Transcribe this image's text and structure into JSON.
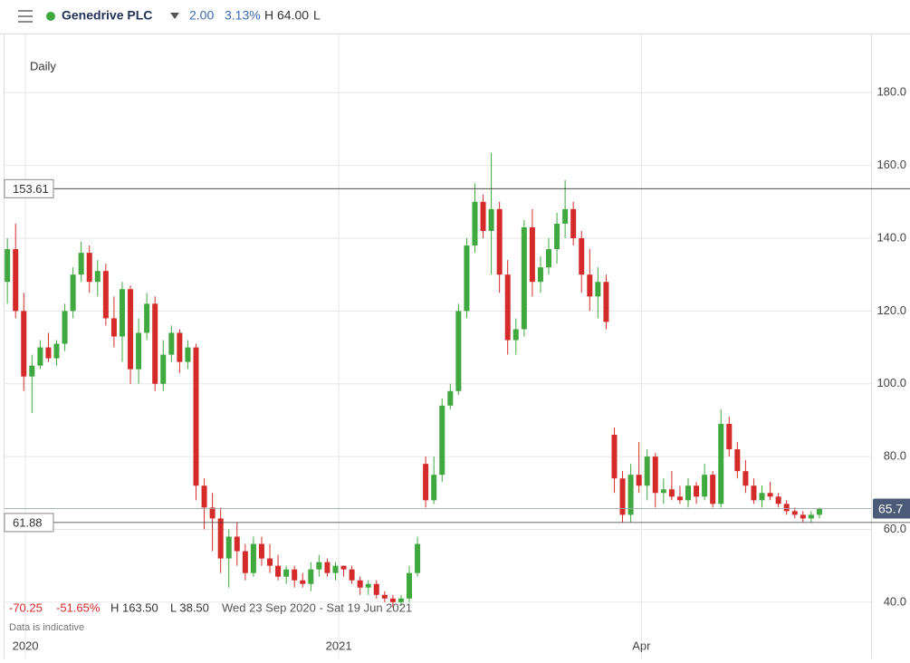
{
  "header": {
    "name": "Genedrive PLC",
    "change": "2.00",
    "change_pct": "3.13%",
    "high": "H 64.00",
    "low": "L"
  },
  "stats": {
    "change": "-70.25",
    "change_pct": "-51.65%",
    "high": "H 163.50",
    "low": "L 38.50",
    "range": "Wed 23 Sep 2020 - Sat 19 Jun 2021",
    "note": "Data is indicative"
  },
  "chart_data": {
    "type": "candlestick",
    "title": "Daily",
    "up_color": "#3fa83f",
    "down_color": "#d42a2a",
    "grid": true,
    "ylim": [
      30,
      196
    ],
    "yticks": [
      {
        "value": 40,
        "label": "40.0"
      },
      {
        "value": 60,
        "label": "60.0"
      },
      {
        "value": 80,
        "label": "80.0"
      },
      {
        "value": 100,
        "label": "100.0"
      },
      {
        "value": 120,
        "label": "120.0"
      },
      {
        "value": 140,
        "label": "140.0"
      },
      {
        "value": 160,
        "label": "160.0"
      },
      {
        "value": 180,
        "label": "180.0"
      }
    ],
    "xlim": [
      -0.9,
      105.3
    ],
    "xticks": [
      {
        "value": 2.2,
        "label": "2020"
      },
      {
        "value": 40.4,
        "label": "2021"
      },
      {
        "value": 77.3,
        "label": "Apr"
      }
    ],
    "hlines": [
      153.61,
      61.88
    ],
    "last_price": 65.7,
    "ohlc": [
      [
        128,
        140,
        122,
        137
      ],
      [
        137,
        144,
        118,
        120
      ],
      [
        120,
        125,
        98,
        102
      ],
      [
        102,
        108,
        92,
        105
      ],
      [
        105,
        112,
        104,
        110
      ],
      [
        110,
        114,
        106,
        107
      ],
      [
        107,
        112,
        105,
        111
      ],
      [
        111,
        122,
        109,
        120
      ],
      [
        120,
        132,
        118,
        130
      ],
      [
        130,
        139,
        128,
        136
      ],
      [
        136,
        138,
        125,
        128
      ],
      [
        128,
        134,
        124,
        131
      ],
      [
        131,
        133,
        116,
        118
      ],
      [
        118,
        124,
        110,
        113
      ],
      [
        113,
        128,
        106,
        126
      ],
      [
        126,
        127,
        100,
        104
      ],
      [
        104,
        118,
        100,
        114
      ],
      [
        114,
        125,
        112,
        122
      ],
      [
        122,
        124,
        98,
        100
      ],
      [
        100,
        112,
        98,
        108
      ],
      [
        108,
        116,
        106,
        114
      ],
      [
        114,
        115,
        103,
        106
      ],
      [
        106,
        112,
        104,
        110
      ],
      [
        110,
        111,
        68,
        72
      ],
      [
        72,
        74,
        60,
        66
      ],
      [
        66,
        70,
        54,
        63
      ],
      [
        63,
        66,
        48,
        52
      ],
      [
        52,
        60,
        44,
        58
      ],
      [
        58,
        62,
        50,
        54
      ],
      [
        54,
        56,
        46,
        48
      ],
      [
        48,
        58,
        47,
        56
      ],
      [
        56,
        58,
        50,
        52
      ],
      [
        52,
        56,
        48,
        50
      ],
      [
        50,
        53,
        46,
        47
      ],
      [
        47,
        50,
        45,
        49
      ],
      [
        49,
        50,
        44,
        46
      ],
      [
        46,
        48,
        44,
        45
      ],
      [
        45,
        51,
        43,
        49
      ],
      [
        49,
        53,
        47,
        51
      ],
      [
        51,
        52,
        47,
        48
      ],
      [
        48,
        51,
        46,
        50
      ],
      [
        50,
        50,
        47,
        49
      ],
      [
        49,
        50,
        45,
        46
      ],
      [
        46,
        47,
        42,
        44
      ],
      [
        44,
        46,
        42,
        45
      ],
      [
        45,
        46,
        41,
        42
      ],
      [
        42,
        43,
        40,
        41
      ],
      [
        41,
        42,
        38.5,
        40
      ],
      [
        40,
        42,
        39,
        41
      ],
      [
        41,
        50,
        40,
        48
      ],
      [
        48,
        58,
        47,
        56
      ],
      [
        78,
        80,
        66,
        68
      ],
      [
        68,
        80,
        67,
        75
      ],
      [
        75,
        96,
        73,
        94
      ],
      [
        94,
        100,
        93,
        98
      ],
      [
        98,
        122,
        97,
        120
      ],
      [
        120,
        140,
        118,
        138
      ],
      [
        138,
        155,
        136,
        150
      ],
      [
        150,
        152,
        140,
        142
      ],
      [
        142,
        163.5,
        130,
        148
      ],
      [
        148,
        150,
        125,
        130
      ],
      [
        130,
        134,
        108,
        112
      ],
      [
        112,
        118,
        108,
        115
      ],
      [
        115,
        145,
        113,
        143
      ],
      [
        143,
        148,
        124,
        128
      ],
      [
        128,
        135,
        125,
        132
      ],
      [
        132,
        140,
        130,
        137
      ],
      [
        137,
        147,
        133,
        144
      ],
      [
        144,
        156,
        140,
        148
      ],
      [
        148,
        150,
        138,
        140
      ],
      [
        140,
        142,
        125,
        130
      ],
      [
        130,
        137,
        120,
        124
      ],
      [
        124,
        132,
        118,
        128
      ],
      [
        128,
        130,
        115,
        117
      ],
      [
        86,
        88,
        70,
        74
      ],
      [
        74,
        76,
        62,
        64
      ],
      [
        64,
        78,
        62,
        75
      ],
      [
        75,
        84,
        70,
        72
      ],
      [
        72,
        82,
        68,
        80
      ],
      [
        80,
        81,
        66,
        70
      ],
      [
        70,
        74,
        67,
        71
      ],
      [
        71,
        76,
        68,
        69
      ],
      [
        69,
        72,
        67,
        68
      ],
      [
        68,
        74,
        66,
        72
      ],
      [
        72,
        73,
        67,
        69
      ],
      [
        69,
        78,
        68,
        75
      ],
      [
        75,
        76,
        66,
        67
      ],
      [
        67,
        93,
        66,
        89
      ],
      [
        89,
        91,
        80,
        82
      ],
      [
        82,
        84,
        74,
        76
      ],
      [
        76,
        79,
        70,
        72
      ],
      [
        72,
        74,
        67,
        68
      ],
      [
        68,
        72,
        66,
        70
      ],
      [
        70,
        73,
        68,
        69
      ],
      [
        69,
        70,
        66,
        67
      ],
      [
        67,
        68,
        64,
        65
      ],
      [
        65,
        66,
        63,
        64
      ],
      [
        64,
        65,
        62,
        63
      ],
      [
        63,
        65,
        62,
        64
      ],
      [
        64,
        66,
        63,
        65.7
      ]
    ]
  }
}
